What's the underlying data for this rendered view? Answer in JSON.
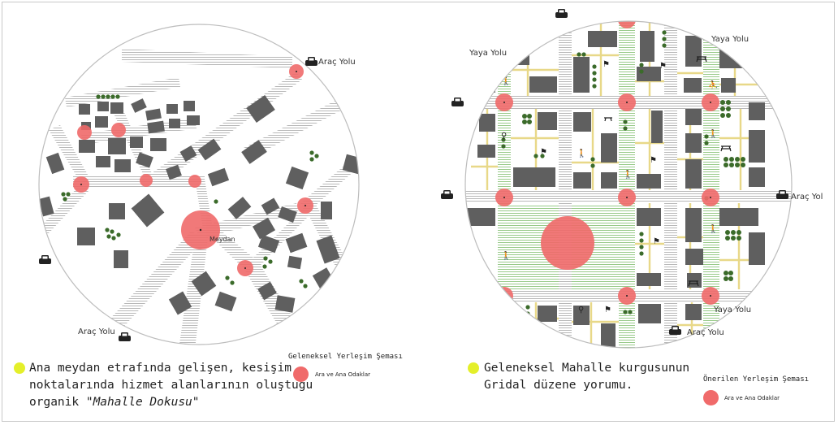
{
  "left_panel": {
    "road_labels": [
      "Araç Yolu",
      "Araç Yolu"
    ],
    "square_label": "Meydan",
    "description": {
      "line1": "Ana meydan etrafında gelişen, kesişim",
      "line2": "noktalarında hizmet alanlarının oluştuğu",
      "line3_prefix": "organik ",
      "line3_quote": "\"Mahalle Dokusu\""
    },
    "legend": {
      "title": "Geleneksel Yerleşim Şeması",
      "item": "Ara ve Ana Odaklar"
    }
  },
  "right_panel": {
    "road_labels": {
      "walk_top_left": "Yaya Yolu",
      "walk_top_right": "Yaya Yolu",
      "vehicle_right": "Araç Yol",
      "walk_bottom_right": "Yaya Yolu",
      "vehicle_bottom": "Araç Yolu"
    },
    "description": {
      "line1": "Geleneksel Mahalle kurgusunun",
      "line2": "Gridal düzene yorumu."
    },
    "legend": {
      "title": "Önerilen Yerleşim Şeması",
      "item": "Ara ve Ana Odaklar"
    }
  },
  "colors": {
    "building": "#5f5f5f",
    "focus": "#f06a6a",
    "tree": "#3b6b2a",
    "bullet": "#e4ef2a",
    "green_lane": "#a8d29a",
    "path": "#e8d888"
  }
}
